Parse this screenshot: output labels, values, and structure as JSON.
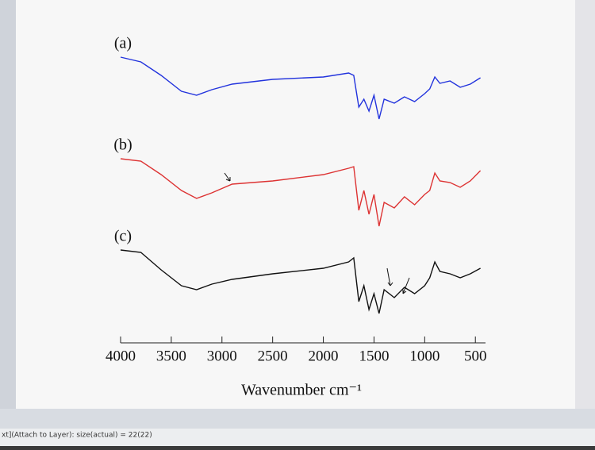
{
  "chart_data": {
    "type": "line",
    "xlabel": "Wavenumber cm⁻¹",
    "x": [
      4000,
      3800,
      3600,
      3400,
      3250,
      3100,
      2900,
      2500,
      2000,
      1750,
      1700,
      1650,
      1600,
      1550,
      1500,
      1450,
      1400,
      1300,
      1200,
      1100,
      1000,
      950,
      900,
      850,
      750,
      650,
      550,
      450
    ],
    "xlim": [
      4000,
      400
    ],
    "xticks": [
      4000,
      3500,
      3000,
      2500,
      2000,
      1500,
      1000,
      500
    ],
    "ylim": [
      0,
      400
    ],
    "series": [
      {
        "name": "(a)",
        "color": "#2233dd",
        "values": [
          348,
          342,
          325,
          305,
          300,
          307,
          314,
          320,
          323,
          328,
          325,
          285,
          295,
          280,
          300,
          270,
          295,
          290,
          298,
          292,
          302,
          308,
          323,
          315,
          318,
          310,
          314,
          322
        ]
      },
      {
        "name": "(b)",
        "color": "#dd3333",
        "values": [
          220,
          217,
          200,
          180,
          170,
          177,
          188,
          192,
          200,
          208,
          210,
          155,
          180,
          150,
          175,
          135,
          165,
          158,
          172,
          162,
          175,
          180,
          202,
          192,
          190,
          184,
          192,
          205
        ]
      },
      {
        "name": "(c)",
        "color": "#111111",
        "values": [
          105,
          102,
          80,
          60,
          55,
          62,
          68,
          75,
          82,
          90,
          95,
          40,
          60,
          30,
          50,
          25,
          55,
          45,
          58,
          50,
          60,
          70,
          90,
          78,
          75,
          70,
          75,
          82
        ]
      }
    ]
  },
  "status_bar": "xt](Attach to Layer): size(actual) = 22(22)"
}
